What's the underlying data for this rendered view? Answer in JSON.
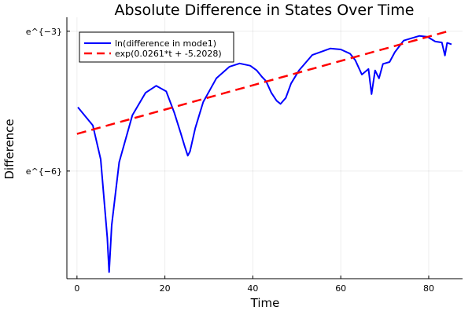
{
  "chart_data": {
    "type": "line",
    "title": "Absolute Difference in States Over Time",
    "xlabel": "Time",
    "ylabel": "Difference",
    "xlim": [
      -2.3,
      87.7
    ],
    "yscale": "log (base e); y values given as natural-log exponents",
    "ylim_exponent": [
      -8.31,
      -2.7
    ],
    "xticks": [
      0,
      20,
      40,
      60,
      80
    ],
    "xtick_labels": [
      "0",
      "20",
      "40",
      "60",
      "80"
    ],
    "yticks_exponent": [
      -6,
      -3
    ],
    "ytick_labels": [
      "e^{−6}",
      "e^{−3}"
    ],
    "grid": true,
    "legend_position": "top-left",
    "series": [
      {
        "name": "ln(difference in mode1)",
        "color": "#0000ff",
        "style": "solid",
        "x": [
          0.2,
          3.6,
          5.4,
          6.9,
          7.3,
          7.9,
          9.6,
          12.6,
          15.6,
          18.0,
          20.3,
          22.1,
          23.6,
          24.5,
          25.2,
          25.7,
          26.9,
          28.7,
          31.7,
          34.7,
          37.0,
          39.4,
          40.9,
          42.1,
          43.0,
          44.2,
          45.4,
          46.3,
          47.5,
          48.7,
          50.5,
          53.5,
          57.6,
          60.0,
          62.1,
          63.3,
          64.8,
          66.3,
          67.0,
          67.8,
          68.7,
          69.6,
          71.1,
          72.3,
          74.3,
          77.9,
          79.7,
          81.5,
          83.0,
          83.7,
          84.2,
          85.2
        ],
        "y": [
          -4.63,
          -5.02,
          -5.75,
          -7.43,
          -8.17,
          -7.16,
          -5.81,
          -4.8,
          -4.32,
          -4.17,
          -4.29,
          -4.74,
          -5.19,
          -5.47,
          -5.67,
          -5.58,
          -5.08,
          -4.52,
          -4.01,
          -3.76,
          -3.69,
          -3.74,
          -3.84,
          -3.98,
          -4.07,
          -4.32,
          -4.49,
          -4.56,
          -4.43,
          -4.12,
          -3.84,
          -3.51,
          -3.37,
          -3.39,
          -3.48,
          -3.62,
          -3.93,
          -3.81,
          -4.35,
          -3.84,
          -4.01,
          -3.7,
          -3.66,
          -3.45,
          -3.2,
          -3.1,
          -3.12,
          -3.22,
          -3.24,
          -3.52,
          -3.25,
          -3.28
        ]
      },
      {
        "name": "exp(0.0261*t + -5.2028)",
        "color": "#ff0000",
        "style": "dashed",
        "slope": 0.0261,
        "intercept": -5.2028,
        "x_range": [
          0,
          85
        ]
      }
    ]
  }
}
